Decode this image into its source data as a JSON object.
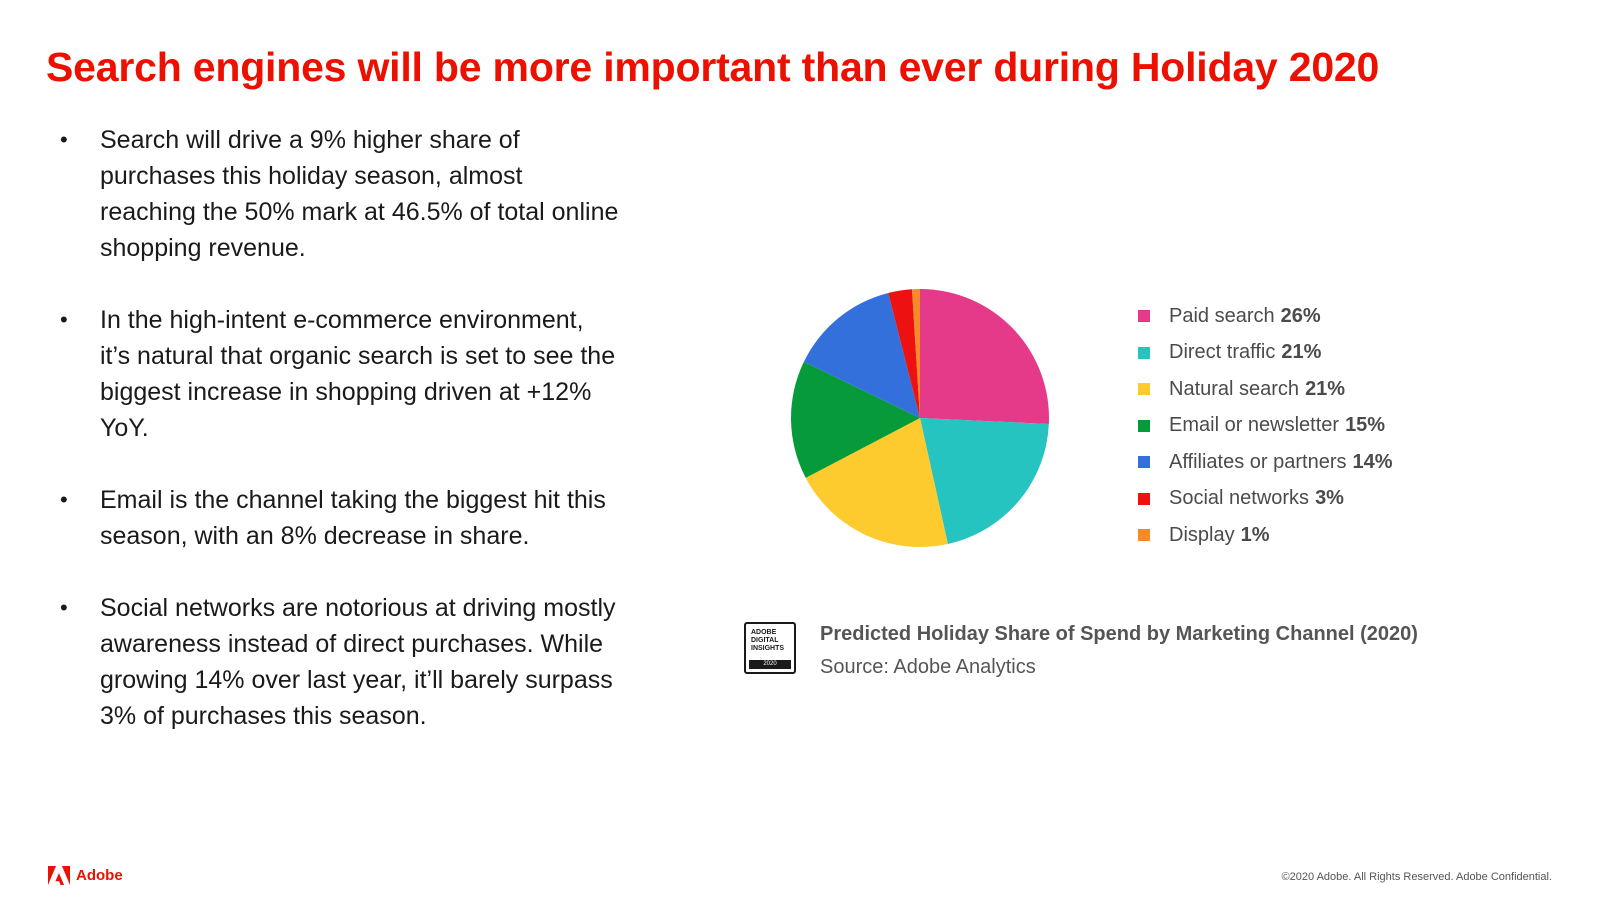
{
  "slide": {
    "title": "Search engines will be more important than ever during Holiday 2020",
    "bullets": [
      "Search will drive a 9% higher share of purchases this holiday season, almost reaching the 50% mark at 46.5% of total online shopping revenue.",
      "In the high-intent e-commerce environment, it’s natural that organic search is set to see the biggest increase in shopping driven at +12% YoY.",
      "Email is the channel taking the biggest hit this season, with an 8% decrease in share.",
      "Social networks are notorious at driving mostly awareness instead of direct purchases. While growing 14% over last year, it’ll barely surpass 3% of purchases this season."
    ],
    "badge": {
      "line1": "ADOBE",
      "line2": "DIGITAL",
      "line3": "INSIGHTS",
      "year": "2020"
    },
    "logo_text": "Adobe",
    "logo_icon": "adobe-logo-icon",
    "footer": "©2020 Adobe. All Rights Reserved. Adobe Confidential."
  },
  "chart_data": {
    "type": "pie",
    "title": "Predicted Holiday Share of Spend by Marketing Channel (2020)",
    "source": "Source: Adobe Analytics",
    "legend_position": "right",
    "slices": [
      {
        "label": "Paid search",
        "pct_label": "26%",
        "value": 26,
        "color": "#e5398a"
      },
      {
        "label": "Direct traffic",
        "pct_label": "21%",
        "value": 21,
        "color": "#25c4c1"
      },
      {
        "label": "Natural search",
        "pct_label": "21%",
        "value": 21,
        "color": "#fdcb2e"
      },
      {
        "label": "Email or newsletter",
        "pct_label": "15%",
        "value": 15,
        "color": "#069a3a"
      },
      {
        "label": "Affiliates or partners",
        "pct_label": "14%",
        "value": 14,
        "color": "#3370dc"
      },
      {
        "label": "Social networks",
        "pct_label": "3%",
        "value": 3,
        "color": "#ee1111"
      },
      {
        "label": "Display",
        "pct_label": "1%",
        "value": 1,
        "color": "#f58a2a"
      }
    ]
  }
}
